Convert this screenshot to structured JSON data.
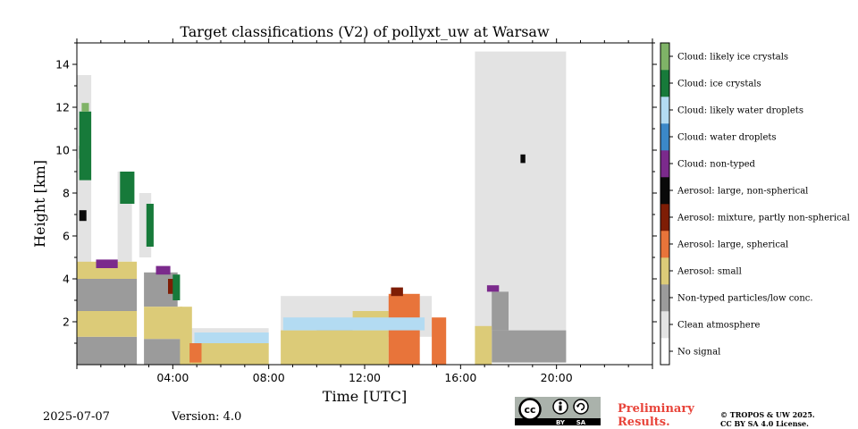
{
  "chart_data": {
    "type": "heatmap",
    "title": "Target classifications (V2) of pollyxt_uw at Warsaw",
    "xlabel": "Time [UTC]",
    "ylabel": "Height [km]",
    "xlim_hours": [
      0,
      24
    ],
    "ylim_km": [
      0,
      15
    ],
    "x_ticks": [
      {
        "hour": 4,
        "label": "04:00"
      },
      {
        "hour": 8,
        "label": "08:00"
      },
      {
        "hour": 12,
        "label": "12:00"
      },
      {
        "hour": 16,
        "label": "16:00"
      },
      {
        "hour": 20,
        "label": "20:00"
      }
    ],
    "y_ticks": [
      {
        "km": 2,
        "label": "2"
      },
      {
        "km": 4,
        "label": "4"
      },
      {
        "km": 6,
        "label": "6"
      },
      {
        "km": 8,
        "label": "8"
      },
      {
        "km": 10,
        "label": "10"
      },
      {
        "km": 12,
        "label": "12"
      },
      {
        "km": 14,
        "label": "14"
      }
    ],
    "colorbar": [
      {
        "label": "No signal",
        "color": "#ffffff"
      },
      {
        "label": "Clean atmosphere",
        "color": "#e3e3e3"
      },
      {
        "label": "Non-typed particles/low conc.",
        "color": "#9b9b9b"
      },
      {
        "label": "Aerosol: small",
        "color": "#dccb78"
      },
      {
        "label": "Aerosol: large, spherical",
        "color": "#e8743a"
      },
      {
        "label": "Aerosol: mixture, partly non-spherical",
        "color": "#7e1d05"
      },
      {
        "label": "Aerosol: large, non-spherical",
        "color": "#0a0a0a"
      },
      {
        "label": "Cloud: non-typed",
        "color": "#7b2a8c"
      },
      {
        "label": "Cloud: water droplets",
        "color": "#3b88c8"
      },
      {
        "label": "Cloud: likely water droplets",
        "color": "#b3dbf2"
      },
      {
        "label": "Cloud: ice crystals",
        "color": "#177a3a"
      },
      {
        "label": "Cloud: likely ice crystals",
        "color": "#7fb367"
      }
    ],
    "regions": [
      {
        "cls": 1,
        "t0": 0.0,
        "t1": 0.6,
        "h0": 4.5,
        "h1": 13.5
      },
      {
        "cls": 1,
        "t0": 1.7,
        "t1": 2.3,
        "h0": 4.8,
        "h1": 9.0
      },
      {
        "cls": 1,
        "t0": 2.6,
        "t1": 3.1,
        "h0": 5.0,
        "h1": 8.0
      },
      {
        "cls": 1,
        "t0": 4.6,
        "t1": 8.0,
        "h0": 0.9,
        "h1": 1.7
      },
      {
        "cls": 1,
        "t0": 8.5,
        "t1": 14.8,
        "h0": 1.3,
        "h1": 3.2
      },
      {
        "cls": 1,
        "t0": 16.6,
        "t1": 20.4,
        "h0": 1.6,
        "h1": 14.6
      },
      {
        "cls": 2,
        "t0": 0.0,
        "t1": 2.5,
        "h0": 0.0,
        "h1": 1.3
      },
      {
        "cls": 2,
        "t0": 0.0,
        "t1": 2.5,
        "h0": 2.5,
        "h1": 4.0
      },
      {
        "cls": 2,
        "t0": 2.8,
        "t1": 4.4,
        "h0": 0.0,
        "h1": 1.2
      },
      {
        "cls": 2,
        "t0": 2.8,
        "t1": 4.2,
        "h0": 2.7,
        "h1": 4.3
      },
      {
        "cls": 2,
        "t0": 10.0,
        "t1": 11.5,
        "h0": 1.0,
        "h1": 2.0
      },
      {
        "cls": 2,
        "t0": 17.3,
        "t1": 20.4,
        "h0": 0.1,
        "h1": 1.6
      },
      {
        "cls": 2,
        "t0": 17.3,
        "t1": 18.0,
        "h0": 1.6,
        "h1": 3.4
      },
      {
        "cls": 3,
        "t0": 0.0,
        "t1": 2.5,
        "h0": 1.3,
        "h1": 2.5
      },
      {
        "cls": 3,
        "t0": 0.0,
        "t1": 2.5,
        "h0": 4.0,
        "h1": 4.8
      },
      {
        "cls": 3,
        "t0": 2.8,
        "t1": 4.4,
        "h0": 1.2,
        "h1": 2.7
      },
      {
        "cls": 3,
        "t0": 4.3,
        "t1": 4.8,
        "h0": 0.0,
        "h1": 2.7
      },
      {
        "cls": 3,
        "t0": 4.8,
        "t1": 8.0,
        "h0": 0.0,
        "h1": 1.0
      },
      {
        "cls": 3,
        "t0": 8.5,
        "t1": 13.0,
        "h0": 0.0,
        "h1": 1.6
      },
      {
        "cls": 3,
        "t0": 11.5,
        "t1": 13.0,
        "h0": 1.6,
        "h1": 2.5
      },
      {
        "cls": 3,
        "t0": 16.6,
        "t1": 17.3,
        "h0": 0.0,
        "h1": 1.8
      },
      {
        "cls": 4,
        "t0": 13.0,
        "t1": 14.3,
        "h0": 0.0,
        "h1": 3.3
      },
      {
        "cls": 4,
        "t0": 14.8,
        "t1": 15.4,
        "h0": 0.0,
        "h1": 2.2
      },
      {
        "cls": 4,
        "t0": 4.7,
        "t1": 5.2,
        "h0": 0.1,
        "h1": 1.0
      },
      {
        "cls": 5,
        "t0": 3.8,
        "t1": 4.2,
        "h0": 3.3,
        "h1": 4.0
      },
      {
        "cls": 5,
        "t0": 13.1,
        "t1": 13.6,
        "h0": 3.2,
        "h1": 3.6
      },
      {
        "cls": 6,
        "t0": 0.1,
        "t1": 0.4,
        "h0": 9.6,
        "h1": 10.2
      },
      {
        "cls": 6,
        "t0": 0.1,
        "t1": 0.4,
        "h0": 6.7,
        "h1": 7.2
      },
      {
        "cls": 6,
        "t0": 18.5,
        "t1": 18.7,
        "h0": 9.4,
        "h1": 9.8
      },
      {
        "cls": 7,
        "t0": 0.8,
        "t1": 1.7,
        "h0": 4.5,
        "h1": 4.9
      },
      {
        "cls": 7,
        "t0": 17.1,
        "t1": 17.6,
        "h0": 3.4,
        "h1": 3.7
      },
      {
        "cls": 7,
        "t0": 3.3,
        "t1": 3.9,
        "h0": 4.2,
        "h1": 4.6
      },
      {
        "cls": 9,
        "t0": 4.9,
        "t1": 8.0,
        "h0": 1.0,
        "h1": 1.5
      },
      {
        "cls": 9,
        "t0": 8.6,
        "t1": 14.5,
        "h0": 1.6,
        "h1": 2.2
      },
      {
        "cls": 10,
        "t0": 0.1,
        "t1": 0.6,
        "h0": 8.6,
        "h1": 11.8
      },
      {
        "cls": 10,
        "t0": 1.8,
        "t1": 2.4,
        "h0": 7.5,
        "h1": 9.0
      },
      {
        "cls": 10,
        "t0": 2.9,
        "t1": 3.2,
        "h0": 5.5,
        "h1": 7.5
      },
      {
        "cls": 10,
        "t0": 4.0,
        "t1": 4.3,
        "h0": 3.0,
        "h1": 4.2
      },
      {
        "cls": 11,
        "t0": 0.2,
        "t1": 0.5,
        "h0": 11.8,
        "h1": 12.2
      }
    ]
  },
  "footer": {
    "date": "2025-07-07",
    "version": "Version: 4.0",
    "preliminary_line1": "Preliminary",
    "preliminary_line2": "Results.",
    "copyright_line1": "© TROPOS & UW 2025.",
    "copyright_line2": "CC BY SA 4.0 License.",
    "license_badge": {
      "by": "BY",
      "sa": "SA"
    }
  }
}
